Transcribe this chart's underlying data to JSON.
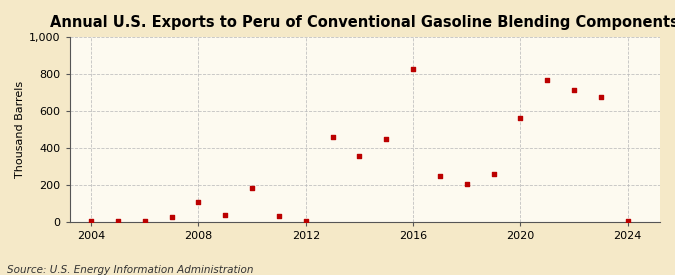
{
  "title": "Annual U.S. Exports to Peru of Conventional Gasoline Blending Components",
  "ylabel": "Thousand Barrels",
  "source": "Source: U.S. Energy Information Administration",
  "years": [
    2004,
    2005,
    2006,
    2007,
    2008,
    2009,
    2010,
    2011,
    2012,
    2013,
    2014,
    2015,
    2016,
    2017,
    2018,
    2019,
    2020,
    2021,
    2022,
    2023,
    2024
  ],
  "values": [
    3,
    5,
    5,
    28,
    108,
    35,
    180,
    30,
    5,
    460,
    355,
    448,
    825,
    245,
    205,
    260,
    560,
    765,
    710,
    675,
    5
  ],
  "marker_color": "#bb0000",
  "marker": "s",
  "marker_size": 3.5,
  "figure_bg_color": "#f5e9c8",
  "plot_bg_color": "#fdfaf0",
  "grid_color": "#bbbbbb",
  "spine_color": "#555555",
  "xlim": [
    2003.2,
    2025.2
  ],
  "ylim": [
    0,
    1000
  ],
  "xticks": [
    2004,
    2008,
    2012,
    2016,
    2020,
    2024
  ],
  "yticks": [
    0,
    200,
    400,
    600,
    800,
    1000
  ],
  "ytick_labels": [
    "0",
    "200",
    "400",
    "600",
    "800",
    "1,000"
  ],
  "title_fontsize": 10.5,
  "label_fontsize": 8,
  "tick_fontsize": 8,
  "source_fontsize": 7.5
}
